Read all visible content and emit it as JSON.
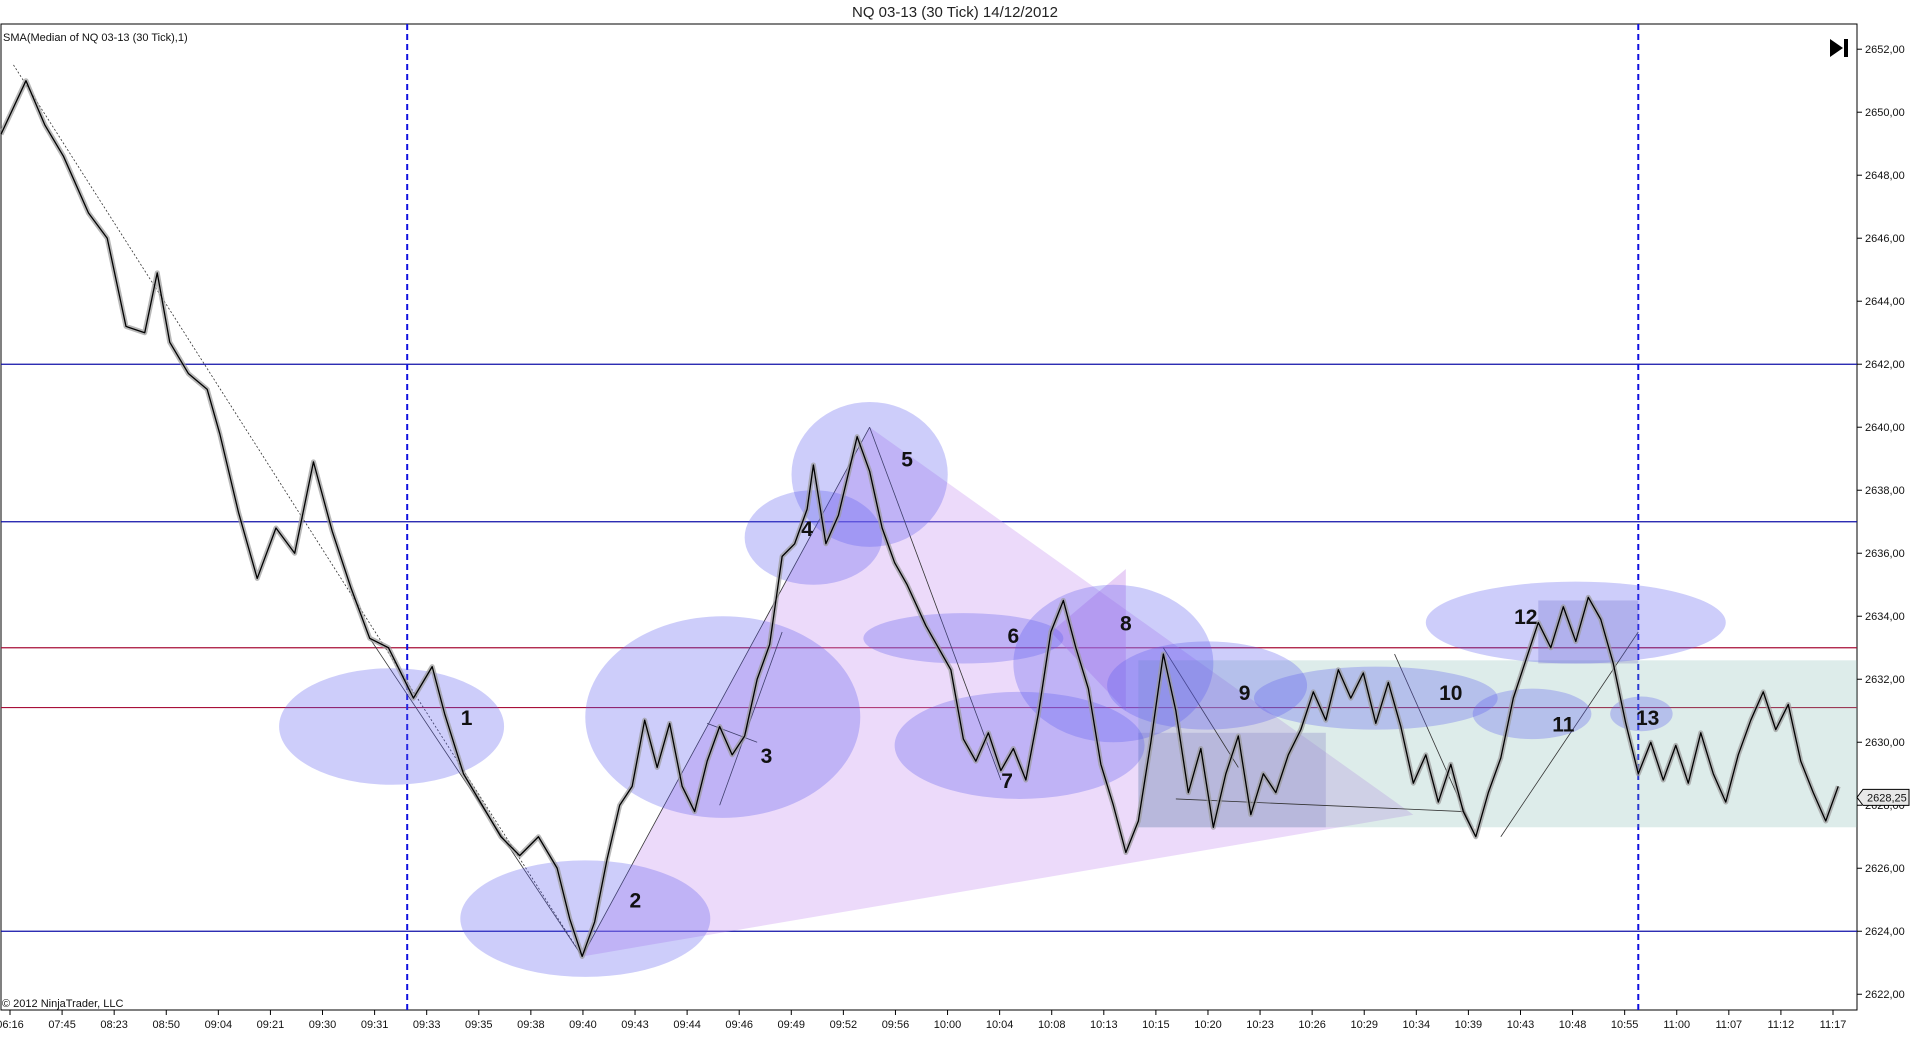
{
  "window": {
    "title": "NQ 03-13 (30 Tick)  14/12/2012",
    "indicator_label": "SMA(Median of NQ 03-13 (30 Tick),1)",
    "copyright": "© 2012 NinjaTrader, LLC",
    "end_button_icon": "skip-to-end-icon"
  },
  "chart_data": {
    "type": "line",
    "title": "NQ 03-13 (30 Tick)  14/12/2012",
    "series": [
      {
        "name": "SMA(Median of NQ 03-13 (30 Tick),1)",
        "color": "#000000"
      }
    ],
    "ylim": [
      2621.5,
      2652.8
    ],
    "y_ticks": [
      "2652,00",
      "2650,00",
      "2648,00",
      "2646,00",
      "2644,00",
      "2642,00",
      "2640,00",
      "2638,00",
      "2636,00",
      "2634,00",
      "2632,00",
      "2630,00",
      "2628,00",
      "2626,00",
      "2624,00",
      "2622,00"
    ],
    "x_ticks": [
      "06:16",
      "07:45",
      "08:23",
      "08:50",
      "09:04",
      "09:21",
      "09:30",
      "09:31",
      "09:33",
      "09:35",
      "09:38",
      "09:40",
      "09:43",
      "09:44",
      "09:46",
      "09:49",
      "09:52",
      "09:56",
      "10:00",
      "10:04",
      "10:08",
      "10:13",
      "10:15",
      "10:20",
      "10:23",
      "10:26",
      "10:29",
      "10:34",
      "10:39",
      "10:43",
      "10:48",
      "10:55",
      "11:00",
      "11:07",
      "11:12",
      "11:17"
    ],
    "points": [
      [
        0,
        2649.3
      ],
      [
        4,
        2651.0
      ],
      [
        7,
        2649.6
      ],
      [
        10,
        2648.6
      ],
      [
        14,
        2646.8
      ],
      [
        17,
        2646.0
      ],
      [
        20,
        2643.2
      ],
      [
        23,
        2643.0
      ],
      [
        25,
        2644.9
      ],
      [
        27,
        2642.7
      ],
      [
        30,
        2641.7
      ],
      [
        33,
        2641.2
      ],
      [
        35,
        2639.8
      ],
      [
        38,
        2637.3
      ],
      [
        41,
        2635.2
      ],
      [
        44,
        2636.8
      ],
      [
        47,
        2636.0
      ],
      [
        50,
        2638.9
      ],
      [
        53,
        2636.7
      ],
      [
        56,
        2634.9
      ],
      [
        59,
        2633.3
      ],
      [
        62,
        2633.0
      ],
      [
        64,
        2632.2
      ],
      [
        66,
        2631.4
      ],
      [
        69,
        2632.4
      ],
      [
        71,
        2630.9
      ],
      [
        74,
        2629.0
      ],
      [
        77,
        2628.0
      ],
      [
        80,
        2627.0
      ],
      [
        83,
        2626.4
      ],
      [
        86,
        2627.0
      ],
      [
        89,
        2626.0
      ],
      [
        91,
        2624.4
      ],
      [
        93,
        2623.2
      ],
      [
        95,
        2624.3
      ],
      [
        97,
        2626.3
      ],
      [
        99,
        2628.0
      ],
      [
        101,
        2628.6
      ],
      [
        103,
        2630.7
      ],
      [
        105,
        2629.2
      ],
      [
        107,
        2630.6
      ],
      [
        109,
        2628.6
      ],
      [
        111,
        2627.8
      ],
      [
        113,
        2629.4
      ],
      [
        115,
        2630.5
      ],
      [
        117,
        2629.6
      ],
      [
        119,
        2630.2
      ],
      [
        121,
        2632.0
      ],
      [
        123,
        2633.1
      ],
      [
        125,
        2635.9
      ],
      [
        127,
        2636.3
      ],
      [
        129,
        2637.4
      ],
      [
        130,
        2638.8
      ],
      [
        132,
        2636.3
      ],
      [
        134,
        2637.2
      ],
      [
        137,
        2639.7
      ],
      [
        139,
        2638.6
      ],
      [
        141,
        2636.8
      ],
      [
        143,
        2635.7
      ],
      [
        145,
        2635.0
      ],
      [
        148,
        2633.7
      ],
      [
        150,
        2633.0
      ],
      [
        152,
        2632.3
      ],
      [
        154,
        2630.1
      ],
      [
        156,
        2629.4
      ],
      [
        158,
        2630.3
      ],
      [
        160,
        2629.1
      ],
      [
        162,
        2629.8
      ],
      [
        164,
        2628.8
      ],
      [
        166,
        2630.9
      ],
      [
        168,
        2633.5
      ],
      [
        170,
        2634.5
      ],
      [
        172,
        2633.0
      ],
      [
        174,
        2631.7
      ],
      [
        176,
        2629.3
      ],
      [
        178,
        2628.0
      ],
      [
        180,
        2626.5
      ],
      [
        182,
        2627.5
      ],
      [
        184,
        2630.0
      ],
      [
        186,
        2632.8
      ],
      [
        188,
        2631.0
      ],
      [
        190,
        2628.4
      ],
      [
        192,
        2629.8
      ],
      [
        194,
        2627.3
      ],
      [
        196,
        2629.0
      ],
      [
        198,
        2630.2
      ],
      [
        200,
        2627.7
      ],
      [
        202,
        2629.0
      ],
      [
        204,
        2628.4
      ],
      [
        206,
        2629.6
      ],
      [
        208,
        2630.4
      ],
      [
        210,
        2631.6
      ],
      [
        212,
        2630.7
      ],
      [
        214,
        2632.3
      ],
      [
        216,
        2631.4
      ],
      [
        218,
        2632.2
      ],
      [
        220,
        2630.6
      ],
      [
        222,
        2631.9
      ],
      [
        224,
        2630.5
      ],
      [
        226,
        2628.7
      ],
      [
        228,
        2629.6
      ],
      [
        230,
        2628.1
      ],
      [
        232,
        2629.3
      ],
      [
        234,
        2627.8
      ],
      [
        236,
        2627.0
      ],
      [
        238,
        2628.4
      ],
      [
        240,
        2629.5
      ],
      [
        242,
        2631.4
      ],
      [
        244,
        2632.6
      ],
      [
        246,
        2633.8
      ],
      [
        248,
        2633.0
      ],
      [
        250,
        2634.3
      ],
      [
        252,
        2633.2
      ],
      [
        254,
        2634.6
      ],
      [
        256,
        2633.9
      ],
      [
        258,
        2632.5
      ],
      [
        260,
        2630.6
      ],
      [
        262,
        2629.0
      ],
      [
        264,
        2630.0
      ],
      [
        266,
        2628.8
      ],
      [
        268,
        2629.9
      ],
      [
        270,
        2628.7
      ],
      [
        272,
        2630.3
      ],
      [
        274,
        2629.0
      ],
      [
        276,
        2628.1
      ],
      [
        278,
        2629.6
      ],
      [
        280,
        2630.7
      ],
      [
        282,
        2631.6
      ],
      [
        284,
        2630.4
      ],
      [
        286,
        2631.2
      ],
      [
        288,
        2629.4
      ],
      [
        290,
        2628.4
      ],
      [
        292,
        2627.5
      ],
      [
        294,
        2628.6
      ]
    ],
    "horizontal_lines": [
      {
        "y": 2642.0,
        "color": "#1010a8"
      },
      {
        "y": 2637.0,
        "color": "#1010a8"
      },
      {
        "y": 2633.0,
        "color": "#a8103a"
      },
      {
        "y": 2631.1,
        "color": "#a8103a"
      },
      {
        "y": 2624.0,
        "color": "#1010a8"
      }
    ],
    "vertical_lines": [
      {
        "x": 65,
        "color": "#1010e0"
      },
      {
        "x": 262,
        "color": "#1010e0"
      }
    ],
    "last_price_marker": "2628,25",
    "annotations": [
      {
        "label": "1",
        "x": 62.5,
        "y": 2630.5,
        "rx": 18,
        "ry": 1.85
      },
      {
        "label": "2",
        "x": 93.5,
        "y": 2624.4,
        "rx": 20,
        "ry": 1.85
      },
      {
        "label": "3",
        "x": 115.5,
        "y": 2630.8,
        "rx": 22,
        "ry": 3.2
      },
      {
        "label": "4",
        "x": 130.0,
        "y": 2636.5,
        "rx": 11,
        "ry": 1.5
      },
      {
        "label": "5",
        "x": 139.0,
        "y": 2638.5,
        "rx": 12.5,
        "ry": 2.3
      },
      {
        "label": "6",
        "x": 154.0,
        "y": 2633.3,
        "rx": 16,
        "ry": 0.8
      },
      {
        "label": "7",
        "x": 163.0,
        "y": 2629.9,
        "rx": 20,
        "ry": 1.7
      },
      {
        "label": "8",
        "x": 178.0,
        "y": 2632.5,
        "rx": 16,
        "ry": 2.5
      },
      {
        "label": "9",
        "x": 193.0,
        "y": 2631.8,
        "rx": 16,
        "ry": 1.4
      },
      {
        "label": "10",
        "x": 220.0,
        "y": 2631.4,
        "rx": 19.5,
        "ry": 1.0
      },
      {
        "label": "11",
        "x": 245.0,
        "y": 2630.9,
        "rx": 9.5,
        "ry": 0.8
      },
      {
        "label": "12",
        "x": 252.0,
        "y": 2633.8,
        "rx": 24,
        "ry": 1.3
      },
      {
        "label": "13",
        "x": 262.5,
        "y": 2630.9,
        "rx": 5,
        "ry": 0.55
      }
    ]
  }
}
